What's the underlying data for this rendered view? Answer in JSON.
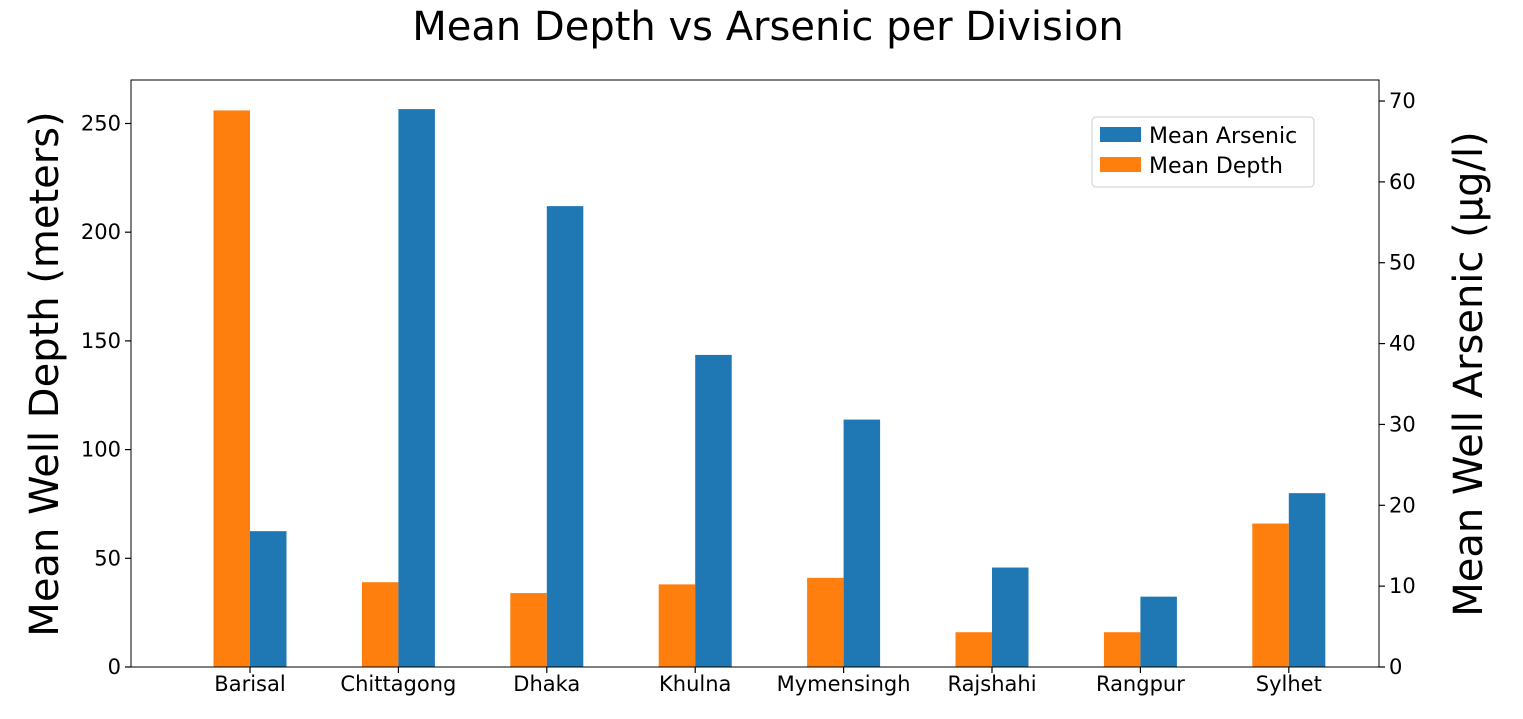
{
  "chart_data": {
    "type": "bar",
    "title": "Mean Depth vs Arsenic per Division",
    "xlabel": "",
    "ylabel_left": "Mean Well Depth (meters)",
    "ylabel_right": "Mean Well Arsenic (µg/l)",
    "categories": [
      "Barisal",
      "Chittagong",
      "Dhaka",
      "Khulna",
      "Mymensingh",
      "Rajshahi",
      "Rangpur",
      "Sylhet"
    ],
    "ylim_left": [
      0,
      270
    ],
    "ylim_right": [
      0,
      72.6
    ],
    "yticks_left": [
      0,
      50,
      100,
      150,
      200,
      250
    ],
    "yticks_right": [
      0,
      10,
      20,
      30,
      40,
      50,
      60,
      70
    ],
    "series": [
      {
        "name": "Mean Depth",
        "axis": "left",
        "color": "#ff7f0e",
        "values": [
          256,
          39,
          34,
          38,
          41,
          16,
          16,
          66
        ]
      },
      {
        "name": "Mean Arsenic",
        "axis": "right",
        "color": "#1f77b4",
        "values": [
          16.8,
          69,
          57,
          38.6,
          30.6,
          12.3,
          8.7,
          21.5
        ]
      }
    ],
    "legend": {
      "placement": "top-right",
      "order": [
        "Mean Arsenic",
        "Mean Depth"
      ]
    },
    "grid": false
  }
}
